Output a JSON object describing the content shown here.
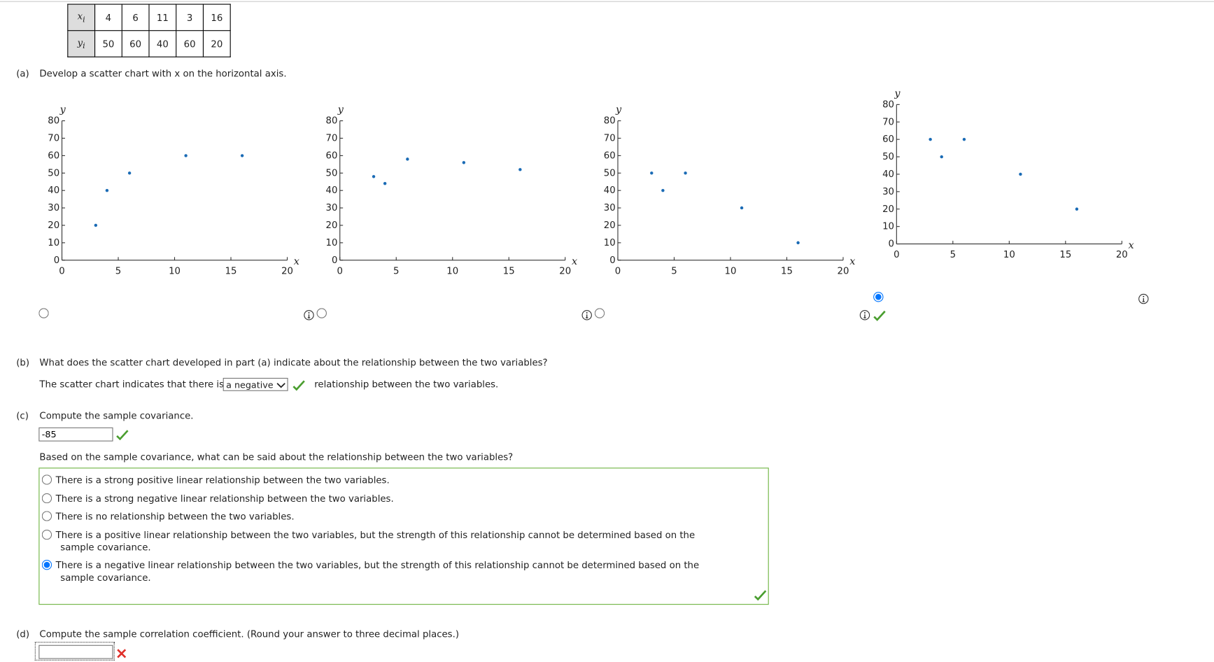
{
  "table": {
    "rows": [
      {
        "var": "x",
        "sub": "i",
        "values": [
          4,
          6,
          11,
          3,
          16
        ]
      },
      {
        "var": "y",
        "sub": "i",
        "values": [
          50,
          60,
          40,
          60,
          20
        ]
      }
    ]
  },
  "part_a": {
    "label": "(a)",
    "text": "Develop a scatter chart with x on the horizontal axis.",
    "selected_chart": 3
  },
  "chart_data": [
    {
      "type": "scatter",
      "x_label": "x",
      "y_label": "y",
      "color": "#1a6bb5",
      "x": [
        3,
        4,
        6,
        11,
        16
      ],
      "y": [
        20,
        40,
        50,
        60,
        60
      ],
      "xlim": [
        0,
        20
      ],
      "ylim": [
        0,
        80
      ],
      "xticks": [
        0,
        5,
        10,
        15,
        20
      ],
      "yticks": [
        0,
        10,
        20,
        30,
        40,
        50,
        60,
        70,
        80
      ]
    },
    {
      "type": "scatter",
      "x_label": "x",
      "y_label": "y",
      "color": "#1a6bb5",
      "x": [
        3,
        4,
        6,
        11,
        16
      ],
      "y": [
        48,
        44,
        58,
        56,
        52
      ],
      "xlim": [
        0,
        20
      ],
      "ylim": [
        0,
        80
      ],
      "xticks": [
        0,
        5,
        10,
        15,
        20
      ],
      "yticks": [
        0,
        10,
        20,
        30,
        40,
        50,
        60,
        70,
        80
      ]
    },
    {
      "type": "scatter",
      "x_label": "x",
      "y_label": "y",
      "color": "#1a6bb5",
      "x": [
        3,
        4,
        6,
        11,
        16
      ],
      "y": [
        50,
        40,
        50,
        30,
        10
      ],
      "xlim": [
        0,
        20
      ],
      "ylim": [
        0,
        80
      ],
      "xticks": [
        0,
        5,
        10,
        15,
        20
      ],
      "yticks": [
        0,
        10,
        20,
        30,
        40,
        50,
        60,
        70,
        80
      ]
    },
    {
      "type": "scatter",
      "x_label": "x",
      "y_label": "y",
      "color": "#1a6bb5",
      "x": [
        3,
        4,
        6,
        11,
        16
      ],
      "y": [
        60,
        50,
        60,
        40,
        20
      ],
      "xlim": [
        0,
        20
      ],
      "ylim": [
        0,
        80
      ],
      "xticks": [
        0,
        5,
        10,
        15,
        20
      ],
      "yticks": [
        0,
        10,
        20,
        30,
        40,
        50,
        60,
        70,
        80
      ]
    }
  ],
  "part_b": {
    "label": "(b)",
    "question": "What does the scatter chart developed in part (a) indicate about the relationship between the two variables?",
    "sentence_start": "The scatter chart indicates that there is",
    "answer": "a negative",
    "sentence_end": "relationship between the two variables."
  },
  "part_c": {
    "label": "(c)",
    "question": "Compute the sample covariance.",
    "answer": "-85",
    "follow_up": "Based on the sample covariance, what can be said about the relationship between the two variables?",
    "options": [
      "There is a strong positive linear relationship between the two variables.",
      "There is a strong negative linear relationship between the two variables.",
      "There is no relationship between the two variables.",
      "There is a positive linear relationship between the two variables, but the strength of this relationship cannot be determined based on the sample covariance.",
      "There is a negative linear relationship between the two variables, but the strength of this relationship cannot be determined based on the sample covariance."
    ],
    "selected": 4
  },
  "part_d": {
    "label": "(d)",
    "question": "Compute the sample correlation coefficient. (Round your answer to three decimal places.)"
  }
}
